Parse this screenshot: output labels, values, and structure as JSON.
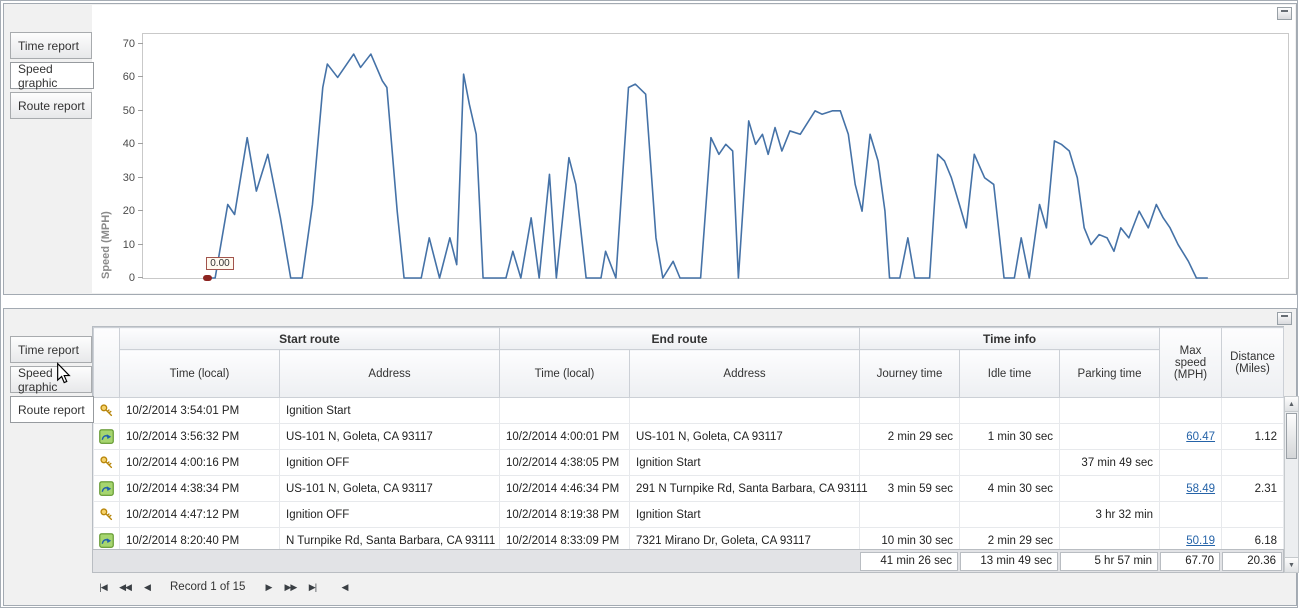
{
  "colors": {
    "chart_line": "#4572a7",
    "link": "#2563a8",
    "marker": "#8c2420",
    "annotation_border": "#a2544c"
  },
  "chart_data": {
    "type": "line",
    "title": "",
    "xlabel": "",
    "ylabel": "Speed (MPH)",
    "yticks": [
      0,
      10,
      20,
      30,
      40,
      50,
      60,
      70
    ],
    "ylim": [
      0,
      73
    ],
    "grid": false,
    "legend": false,
    "annotation": {
      "text": "0.00",
      "x_pct": 5.7,
      "y": 0
    },
    "series": [
      {
        "name": "speed",
        "x_unit": "percent-of-time-axis",
        "points": [
          [
            5.7,
            0
          ],
          [
            6.3,
            0
          ],
          [
            7.4,
            22
          ],
          [
            8.0,
            19
          ],
          [
            9.1,
            42
          ],
          [
            9.9,
            26
          ],
          [
            10.9,
            37
          ],
          [
            12.0,
            18
          ],
          [
            12.9,
            0
          ],
          [
            13.9,
            0
          ],
          [
            14.8,
            22
          ],
          [
            15.7,
            57
          ],
          [
            16.1,
            64
          ],
          [
            17.0,
            60
          ],
          [
            17.6,
            63
          ],
          [
            18.4,
            67
          ],
          [
            19.0,
            63
          ],
          [
            19.9,
            67
          ],
          [
            20.9,
            59
          ],
          [
            21.3,
            57
          ],
          [
            22.2,
            20
          ],
          [
            22.8,
            0
          ],
          [
            24.3,
            0
          ],
          [
            25.0,
            12
          ],
          [
            25.9,
            0
          ],
          [
            26.8,
            12
          ],
          [
            27.4,
            4
          ],
          [
            28.0,
            61
          ],
          [
            28.5,
            52
          ],
          [
            29.1,
            43
          ],
          [
            29.7,
            0
          ],
          [
            31.7,
            0
          ],
          [
            32.3,
            8
          ],
          [
            33.0,
            0
          ],
          [
            33.9,
            18
          ],
          [
            34.6,
            0
          ],
          [
            35.5,
            31
          ],
          [
            36.1,
            0
          ],
          [
            37.2,
            36
          ],
          [
            37.8,
            28
          ],
          [
            38.7,
            0
          ],
          [
            40.0,
            0
          ],
          [
            40.4,
            8
          ],
          [
            41.3,
            0
          ],
          [
            42.4,
            57
          ],
          [
            43.0,
            58
          ],
          [
            43.9,
            55
          ],
          [
            44.8,
            12
          ],
          [
            45.4,
            0
          ],
          [
            46.3,
            5
          ],
          [
            46.9,
            0
          ],
          [
            48.7,
            0
          ],
          [
            49.6,
            42
          ],
          [
            50.3,
            37
          ],
          [
            50.9,
            40
          ],
          [
            51.5,
            38
          ],
          [
            52.0,
            0
          ],
          [
            52.9,
            47
          ],
          [
            53.5,
            40
          ],
          [
            54.1,
            43
          ],
          [
            54.6,
            37
          ],
          [
            55.2,
            45
          ],
          [
            55.8,
            38
          ],
          [
            56.5,
            44
          ],
          [
            57.4,
            43
          ],
          [
            58.7,
            50
          ],
          [
            59.3,
            49
          ],
          [
            60.2,
            50
          ],
          [
            60.9,
            50
          ],
          [
            61.6,
            43
          ],
          [
            62.2,
            28
          ],
          [
            62.8,
            20
          ],
          [
            63.5,
            43
          ],
          [
            64.2,
            35
          ],
          [
            64.8,
            20
          ],
          [
            65.2,
            0
          ],
          [
            66.1,
            0
          ],
          [
            66.8,
            12
          ],
          [
            67.4,
            0
          ],
          [
            68.7,
            0
          ],
          [
            69.4,
            37
          ],
          [
            70.0,
            35
          ],
          [
            70.6,
            30
          ],
          [
            71.3,
            22
          ],
          [
            71.9,
            15
          ],
          [
            72.6,
            37
          ],
          [
            73.5,
            30
          ],
          [
            74.3,
            28
          ],
          [
            75.2,
            0
          ],
          [
            76.1,
            0
          ],
          [
            76.7,
            12
          ],
          [
            77.4,
            0
          ],
          [
            78.3,
            22
          ],
          [
            78.9,
            15
          ],
          [
            79.6,
            41
          ],
          [
            80.2,
            40
          ],
          [
            80.9,
            38
          ],
          [
            81.6,
            30
          ],
          [
            82.2,
            15
          ],
          [
            82.8,
            10
          ],
          [
            83.5,
            13
          ],
          [
            84.2,
            12
          ],
          [
            84.8,
            8
          ],
          [
            85.4,
            15
          ],
          [
            86.1,
            12
          ],
          [
            87.0,
            20
          ],
          [
            87.8,
            15
          ],
          [
            88.5,
            22
          ],
          [
            89.1,
            18
          ],
          [
            89.7,
            15
          ],
          [
            90.4,
            10
          ],
          [
            91.3,
            5
          ],
          [
            92.0,
            0
          ],
          [
            93.0,
            0
          ]
        ]
      }
    ]
  },
  "top_panel": {
    "tabs": [
      {
        "label": "Time report",
        "selected": false
      },
      {
        "label": "Speed graphic",
        "selected": true
      },
      {
        "label": "Route report",
        "selected": false
      }
    ]
  },
  "bottom_panel": {
    "tabs": [
      {
        "label": "Time report",
        "selected": false
      },
      {
        "label": "Speed graphic",
        "selected": false
      },
      {
        "label": "Route report",
        "selected": true
      }
    ],
    "table": {
      "group_headers": [
        "Start route",
        "End route",
        "Time info"
      ],
      "sub_headers": [
        "Time (local)",
        "Address",
        "Time (local)",
        "Address",
        "Journey time",
        "Idle time",
        "Parking time"
      ],
      "span_headers": [
        "Max speed (MPH)",
        "Distance (Miles)"
      ],
      "rows": [
        {
          "icon": "key",
          "cells": [
            "10/2/2014 3:54:01 PM",
            "Ignition Start",
            "",
            "",
            "",
            "",
            "",
            "",
            ""
          ]
        },
        {
          "icon": "route",
          "max_speed_link": true,
          "cells": [
            "10/2/2014 3:56:32 PM",
            "US-101 N, Goleta, CA 93117",
            "10/2/2014 4:00:01 PM",
            "US-101 N, Goleta, CA 93117",
            "2 min 29 sec",
            "1 min 30 sec",
            "",
            "60.47",
            "1.12"
          ]
        },
        {
          "icon": "key",
          "cells": [
            "10/2/2014 4:00:16 PM",
            "Ignition OFF",
            "10/2/2014 4:38:05 PM",
            "Ignition Start",
            "",
            "",
            "37 min 49 sec",
            "",
            ""
          ]
        },
        {
          "icon": "route",
          "max_speed_link": true,
          "cells": [
            "10/2/2014 4:38:34 PM",
            "US-101 N, Goleta, CA 93117",
            "10/2/2014 4:46:34 PM",
            "291 N Turnpike Rd, Santa Barbara, CA 93111",
            "3 min 59 sec",
            "4 min 30 sec",
            "",
            "58.49",
            "2.31"
          ]
        },
        {
          "icon": "key",
          "cells": [
            "10/2/2014 4:47:12 PM",
            "Ignition OFF",
            "10/2/2014 8:19:38 PM",
            "Ignition Start",
            "",
            "",
            "3 hr 32 min",
            "",
            ""
          ]
        },
        {
          "icon": "route",
          "max_speed_link": true,
          "cells": [
            "10/2/2014 8:20:40 PM",
            "N Turnpike Rd, Santa Barbara, CA 93111",
            "10/2/2014 8:33:09 PM",
            "7321 Mirano Dr, Goleta, CA 93117",
            "10 min 30 sec",
            "2 min 29 sec",
            "",
            "50.19",
            "6.18"
          ]
        }
      ],
      "summary": {
        "journey_time": "41 min 26 sec",
        "idle_time": "13 min 49 sec",
        "parking_time": "5 hr 57 min",
        "max_speed": "67.70",
        "distance": "20.36"
      }
    },
    "navigator": {
      "buttons_left": [
        "|◀",
        "◀◀",
        "◀"
      ],
      "record_text": "Record 1 of 15",
      "buttons_right": [
        "▶",
        "▶▶",
        "▶|"
      ],
      "extra_button": "◀"
    },
    "scrollbar": {
      "up": "▲",
      "down": "▼"
    }
  }
}
